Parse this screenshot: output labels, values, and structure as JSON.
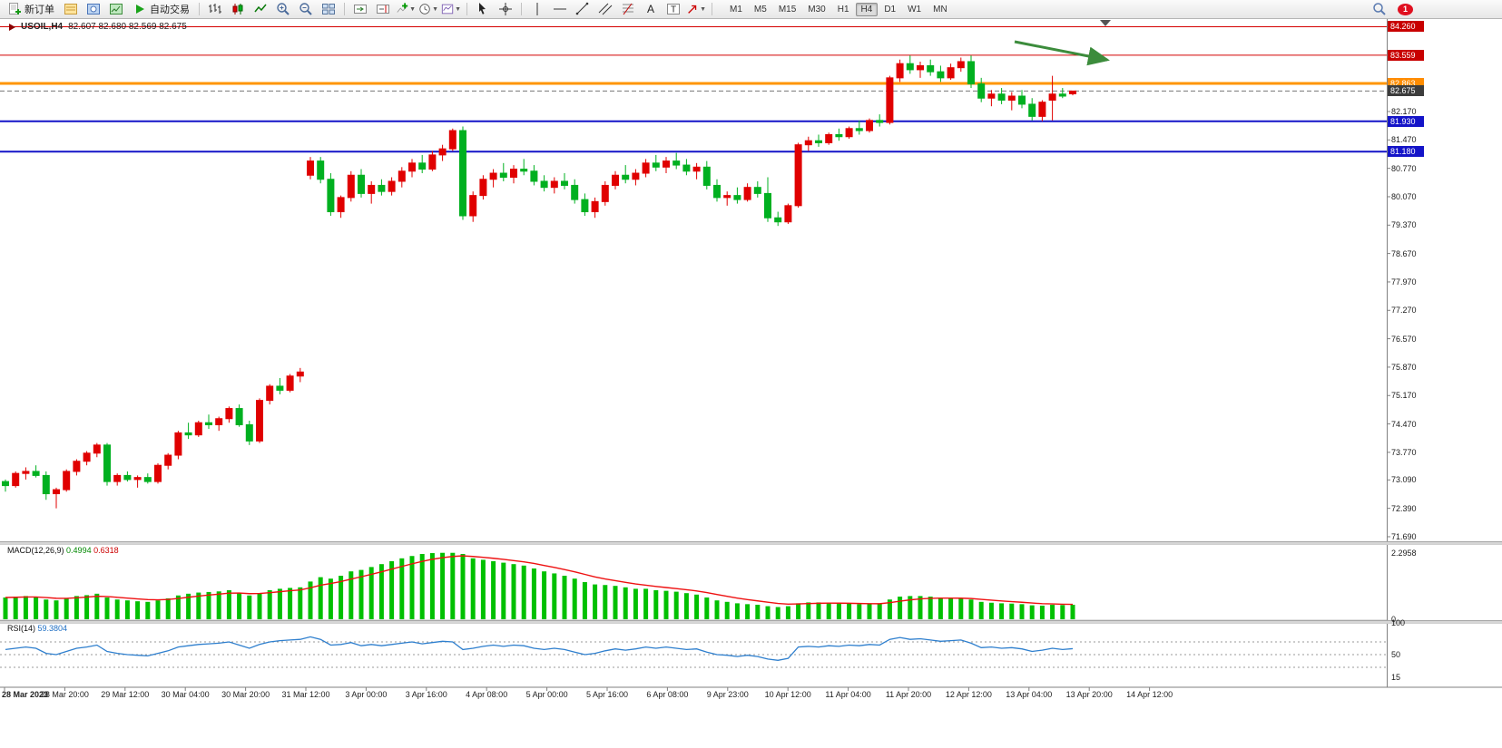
{
  "toolbar": {
    "new_order_label": "新订单",
    "auto_trading_label": "自动交易",
    "timeframes": [
      "M1",
      "M5",
      "M15",
      "M30",
      "H1",
      "H4",
      "D1",
      "W1",
      "MN"
    ],
    "active_timeframe": "H4",
    "badge_count": "1"
  },
  "chart_data": {
    "type": "candlestick",
    "title": "USOIL,H4",
    "ohlc_text": "82.607 82.680 82.569 82.675",
    "ohlc": {
      "open": 82.607,
      "high": 82.68,
      "low": 82.569,
      "close": 82.675
    },
    "colors": {
      "bull": "#e00000",
      "bear": "#00b020",
      "macd_hist": "#00c000",
      "macd_signal": "#ee1111",
      "rsi_line": "#2e7fce"
    },
    "price_axis": {
      "ticks": [
        "82.170",
        "81.470",
        "80.770",
        "80.070",
        "79.370",
        "78.670",
        "77.970",
        "77.270",
        "76.570",
        "75.870",
        "75.170",
        "74.470",
        "73.770",
        "73.090",
        "72.390",
        "71.690"
      ],
      "markers": [
        {
          "value": "84.260",
          "price": 84.26,
          "bg": "#c80000"
        },
        {
          "value": "83.559",
          "price": 83.559,
          "bg": "#c80000"
        },
        {
          "value": "82.863",
          "price": 82.863,
          "bg": "#ff8c00"
        },
        {
          "value": "82.675",
          "price": 82.675,
          "bg": "#3c3c3c"
        },
        {
          "value": "81.930",
          "price": 81.93,
          "bg": "#1414c8"
        },
        {
          "value": "81.180",
          "price": 81.18,
          "bg": "#1414c8"
        }
      ]
    },
    "horizontal_lines": [
      {
        "price": 84.26,
        "color": "#d40000",
        "width": 1
      },
      {
        "price": 83.559,
        "color": "#d40000",
        "width": 1
      },
      {
        "price": 82.863,
        "color": "#ff9500",
        "width": 3
      },
      {
        "price": 81.93,
        "color": "#1414c8",
        "width": 2
      },
      {
        "price": 81.18,
        "color": "#1414c8",
        "width": 2
      }
    ],
    "current_price": 82.675,
    "annotation_arrow": {
      "color": "#3c8c3c"
    },
    "x_labels": [
      "28 Mar 2023",
      "28 Mar 20:00",
      "29 Mar 12:00",
      "30 Mar 04:00",
      "30 Mar 20:00",
      "31 Mar 12:00",
      "3 Apr 00:00",
      "3 Apr 16:00",
      "4 Apr 08:00",
      "5 Apr 00:00",
      "5 Apr 16:00",
      "6 Apr 08:00",
      "9 Apr 23:00",
      "10 Apr 12:00",
      "11 Apr 04:00",
      "11 Apr 20:00",
      "12 Apr 12:00",
      "13 Apr 04:00",
      "13 Apr 20:00",
      "14 Apr 12:00"
    ],
    "candles": [
      [
        73.05,
        73.1,
        72.8,
        72.95
      ],
      [
        72.95,
        73.3,
        72.9,
        73.25
      ],
      [
        73.25,
        73.4,
        73.1,
        73.3
      ],
      [
        73.3,
        73.45,
        73.15,
        73.2
      ],
      [
        73.2,
        73.3,
        72.6,
        72.75
      ],
      [
        72.75,
        72.9,
        72.39,
        72.85
      ],
      [
        72.85,
        73.35,
        72.8,
        73.3
      ],
      [
        73.3,
        73.6,
        73.2,
        73.55
      ],
      [
        73.55,
        73.8,
        73.45,
        73.75
      ],
      [
        73.75,
        74.0,
        73.65,
        73.95
      ],
      [
        73.95,
        74.0,
        72.95,
        73.05
      ],
      [
        73.05,
        73.25,
        72.95,
        73.2
      ],
      [
        73.2,
        73.3,
        73.05,
        73.1
      ],
      [
        73.1,
        73.2,
        72.9,
        73.15
      ],
      [
        73.15,
        73.25,
        73.0,
        73.05
      ],
      [
        73.05,
        73.5,
        73.0,
        73.45
      ],
      [
        73.45,
        73.75,
        73.35,
        73.7
      ],
      [
        73.7,
        74.3,
        73.6,
        74.25
      ],
      [
        74.25,
        74.5,
        74.1,
        74.2
      ],
      [
        74.2,
        74.55,
        74.15,
        74.5
      ],
      [
        74.5,
        74.7,
        74.35,
        74.45
      ],
      [
        74.45,
        74.65,
        74.3,
        74.6
      ],
      [
        74.6,
        74.9,
        74.5,
        74.85
      ],
      [
        74.85,
        74.95,
        74.4,
        74.45
      ],
      [
        74.45,
        74.55,
        73.95,
        74.05
      ],
      [
        74.05,
        75.1,
        74.0,
        75.05
      ],
      [
        75.05,
        75.45,
        74.95,
        75.4
      ],
      [
        75.4,
        75.6,
        75.2,
        75.3
      ],
      [
        75.3,
        75.7,
        75.25,
        75.65
      ],
      [
        75.65,
        75.85,
        75.5,
        75.75
      ],
      [
        80.6,
        81.05,
        80.5,
        80.95
      ],
      [
        80.95,
        81.05,
        80.4,
        80.5
      ],
      [
        80.5,
        80.65,
        79.6,
        79.7
      ],
      [
        79.7,
        80.1,
        79.55,
        80.05
      ],
      [
        80.05,
        80.7,
        79.95,
        80.6
      ],
      [
        80.6,
        80.75,
        80.05,
        80.15
      ],
      [
        80.15,
        80.45,
        79.9,
        80.35
      ],
      [
        80.35,
        80.5,
        80.1,
        80.2
      ],
      [
        80.2,
        80.55,
        80.1,
        80.45
      ],
      [
        80.45,
        80.8,
        80.3,
        80.7
      ],
      [
        80.7,
        81.0,
        80.55,
        80.9
      ],
      [
        80.9,
        81.1,
        80.65,
        80.75
      ],
      [
        80.75,
        81.2,
        80.7,
        81.1
      ],
      [
        81.1,
        81.35,
        80.95,
        81.25
      ],
      [
        81.25,
        81.75,
        81.2,
        81.7
      ],
      [
        81.7,
        81.8,
        79.5,
        79.6
      ],
      [
        79.6,
        80.2,
        79.45,
        80.1
      ],
      [
        80.1,
        80.6,
        80.0,
        80.5
      ],
      [
        80.5,
        80.75,
        80.3,
        80.65
      ],
      [
        80.65,
        80.9,
        80.45,
        80.55
      ],
      [
        80.55,
        80.85,
        80.4,
        80.75
      ],
      [
        80.75,
        81.0,
        80.6,
        80.7
      ],
      [
        80.7,
        80.85,
        80.35,
        80.45
      ],
      [
        80.45,
        80.6,
        80.2,
        80.3
      ],
      [
        80.3,
        80.55,
        80.15,
        80.45
      ],
      [
        80.45,
        80.65,
        80.25,
        80.35
      ],
      [
        80.35,
        80.5,
        79.9,
        80.0
      ],
      [
        80.0,
        80.15,
        79.6,
        79.7
      ],
      [
        79.7,
        80.05,
        79.55,
        79.95
      ],
      [
        79.95,
        80.45,
        79.85,
        80.35
      ],
      [
        80.35,
        80.7,
        80.25,
        80.6
      ],
      [
        80.6,
        80.85,
        80.4,
        80.5
      ],
      [
        80.5,
        80.75,
        80.35,
        80.65
      ],
      [
        80.65,
        81.0,
        80.55,
        80.9
      ],
      [
        80.9,
        81.1,
        80.7,
        80.8
      ],
      [
        80.8,
        81.05,
        80.65,
        80.95
      ],
      [
        80.95,
        81.15,
        80.75,
        80.85
      ],
      [
        80.85,
        81.0,
        80.6,
        80.7
      ],
      [
        80.7,
        80.9,
        80.5,
        80.8
      ],
      [
        80.8,
        80.95,
        80.25,
        80.35
      ],
      [
        80.35,
        80.5,
        79.95,
        80.05
      ],
      [
        80.05,
        80.2,
        79.85,
        80.1
      ],
      [
        80.1,
        80.3,
        79.9,
        80.0
      ],
      [
        80.0,
        80.4,
        79.95,
        80.3
      ],
      [
        80.3,
        80.45,
        80.05,
        80.15
      ],
      [
        80.15,
        80.55,
        79.45,
        79.55
      ],
      [
        79.55,
        79.7,
        79.35,
        79.45
      ],
      [
        79.45,
        79.9,
        79.4,
        79.85
      ],
      [
        79.85,
        81.4,
        79.8,
        81.35
      ],
      [
        81.35,
        81.55,
        81.2,
        81.45
      ],
      [
        81.45,
        81.6,
        81.3,
        81.4
      ],
      [
        81.4,
        81.65,
        81.35,
        81.6
      ],
      [
        81.6,
        81.75,
        81.45,
        81.55
      ],
      [
        81.55,
        81.8,
        81.5,
        81.75
      ],
      [
        81.75,
        81.95,
        81.6,
        81.7
      ],
      [
        81.7,
        82.0,
        81.65,
        81.95
      ],
      [
        81.95,
        82.1,
        81.8,
        81.9
      ],
      [
        81.9,
        83.05,
        81.85,
        83.0
      ],
      [
        83.0,
        83.45,
        82.9,
        83.35
      ],
      [
        83.35,
        83.55,
        83.1,
        83.2
      ],
      [
        83.2,
        83.4,
        83.0,
        83.3
      ],
      [
        83.3,
        83.45,
        83.05,
        83.15
      ],
      [
        83.15,
        83.3,
        82.9,
        83.0
      ],
      [
        83.0,
        83.35,
        82.95,
        83.25
      ],
      [
        83.25,
        83.5,
        83.15,
        83.4
      ],
      [
        83.4,
        83.55,
        82.75,
        82.85
      ],
      [
        82.85,
        83.0,
        82.4,
        82.5
      ],
      [
        82.5,
        82.7,
        82.3,
        82.6
      ],
      [
        82.6,
        82.75,
        82.35,
        82.45
      ],
      [
        82.45,
        82.65,
        82.2,
        82.55
      ],
      [
        82.55,
        82.7,
        82.25,
        82.35
      ],
      [
        82.35,
        82.5,
        81.95,
        82.05
      ],
      [
        82.05,
        82.45,
        81.93,
        82.4
      ],
      [
        82.45,
        83.05,
        81.95,
        82.6
      ],
      [
        82.6,
        82.75,
        82.5,
        82.55
      ],
      [
        82.607,
        82.68,
        82.569,
        82.675
      ]
    ],
    "indicators": {
      "macd": {
        "label": "MACD(12,26,9)",
        "value_main": "0.4994",
        "value_signal": "0.6318",
        "scale_max": "2.2958",
        "scale_zero": "0",
        "histogram": [
          0.75,
          0.78,
          0.8,
          0.77,
          0.68,
          0.65,
          0.72,
          0.8,
          0.83,
          0.88,
          0.75,
          0.68,
          0.65,
          0.62,
          0.6,
          0.65,
          0.72,
          0.82,
          0.88,
          0.92,
          0.94,
          0.96,
          1.0,
          0.92,
          0.82,
          0.9,
          1.0,
          1.05,
          1.08,
          1.1,
          1.3,
          1.45,
          1.4,
          1.5,
          1.65,
          1.7,
          1.8,
          1.9,
          2.0,
          2.1,
          2.18,
          2.25,
          2.28,
          2.29,
          2.29,
          2.25,
          2.1,
          2.05,
          2.0,
          1.95,
          1.9,
          1.85,
          1.75,
          1.65,
          1.58,
          1.5,
          1.4,
          1.28,
          1.2,
          1.18,
          1.15,
          1.1,
          1.05,
          1.05,
          1.0,
          0.98,
          0.95,
          0.9,
          0.85,
          0.75,
          0.65,
          0.6,
          0.55,
          0.52,
          0.5,
          0.45,
          0.42,
          0.45,
          0.55,
          0.58,
          0.58,
          0.57,
          0.55,
          0.54,
          0.52,
          0.52,
          0.53,
          0.68,
          0.78,
          0.8,
          0.8,
          0.78,
          0.75,
          0.73,
          0.72,
          0.68,
          0.6,
          0.57,
          0.55,
          0.54,
          0.52,
          0.48,
          0.47,
          0.5,
          0.49,
          0.5
        ]
      },
      "rsi": {
        "label": "RSI(14)",
        "value": "59.3804",
        "scale_labels": [
          "100",
          "50",
          "15"
        ],
        "levels": [
          70,
          50,
          30
        ],
        "values": [
          58,
          60,
          62,
          60,
          52,
          50,
          55,
          60,
          62,
          65,
          55,
          52,
          50,
          49,
          48,
          52,
          56,
          62,
          64,
          66,
          67,
          68,
          70,
          65,
          60,
          66,
          70,
          72,
          73,
          74,
          78,
          74,
          65,
          66,
          69,
          64,
          66,
          64,
          66,
          68,
          70,
          67,
          69,
          71,
          70,
          58,
          60,
          63,
          65,
          63,
          65,
          64,
          60,
          58,
          60,
          58,
          54,
          50,
          52,
          56,
          59,
          57,
          59,
          62,
          60,
          62,
          60,
          58,
          59,
          54,
          50,
          49,
          47,
          49,
          47,
          43,
          41,
          44,
          62,
          63,
          62,
          64,
          63,
          65,
          64,
          66,
          65,
          74,
          77,
          74,
          75,
          73,
          71,
          72,
          73,
          68,
          61,
          62,
          60,
          61,
          59,
          55,
          57,
          60,
          58,
          59.38
        ]
      }
    }
  }
}
